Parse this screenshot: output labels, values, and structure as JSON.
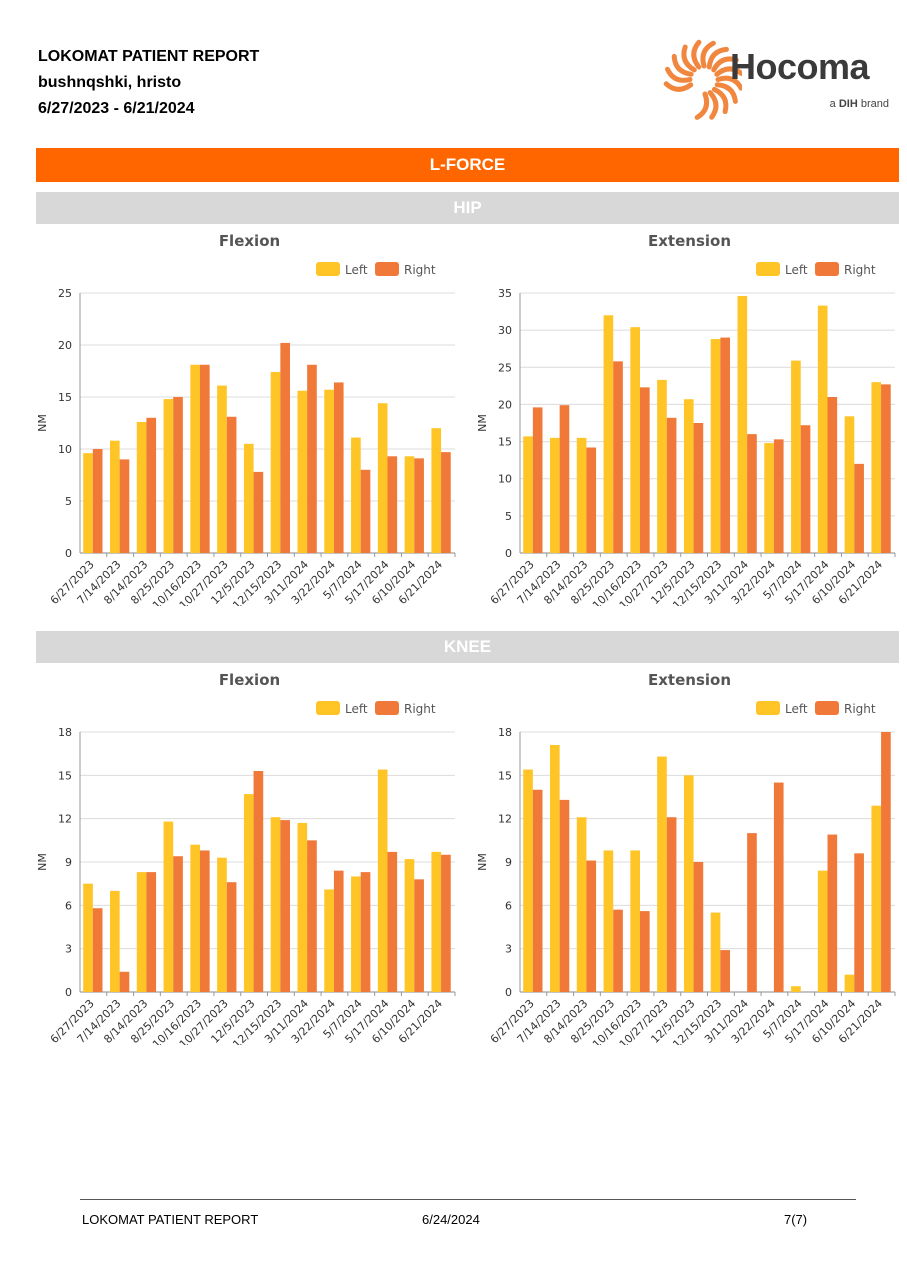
{
  "header": {
    "title": "LOKOMAT PATIENT REPORT",
    "patient": "bushnqshki, hristo",
    "date_range": "6/27/2023 - 6/21/2024"
  },
  "logo": {
    "word": "Hocoma",
    "brand_prefix": "a ",
    "brand_bold": "DIH",
    "brand_suffix": " brand",
    "color": "#f07a2a"
  },
  "section_title": "L-FORCE",
  "colors": {
    "left": "#ffc425",
    "right": "#f07838",
    "band": "#ff6600",
    "band_gray": "#d8d8d8"
  },
  "groups": {
    "hip": "HIP",
    "knee": "KNEE"
  },
  "chart_data": [
    {
      "id": "hip-flexion",
      "type": "bar",
      "title": "Flexion",
      "ylabel": "NM",
      "ylim": [
        0,
        25
      ],
      "yticks": [
        0,
        5,
        10,
        15,
        20,
        25
      ],
      "legend": "top-right",
      "categories": [
        "6/27/2023",
        "7/14/2023",
        "8/14/2023",
        "8/25/2023",
        "10/16/2023",
        "10/27/2023",
        "12/5/2023",
        "12/15/2023",
        "3/11/2024",
        "3/22/2024",
        "5/7/2024",
        "5/17/2024",
        "6/10/2024",
        "6/21/2024"
      ],
      "series": [
        {
          "name": "Left",
          "values": [
            9.6,
            10.8,
            12.6,
            14.8,
            18.1,
            16.1,
            10.5,
            17.4,
            15.6,
            15.7,
            11.1,
            14.4,
            9.3,
            12.0
          ]
        },
        {
          "name": "Right",
          "values": [
            10.0,
            9.0,
            13.0,
            15.0,
            18.1,
            13.1,
            7.8,
            20.2,
            18.1,
            16.4,
            8.0,
            9.3,
            9.1,
            9.7
          ]
        }
      ]
    },
    {
      "id": "hip-extension",
      "type": "bar",
      "title": "Extension",
      "ylabel": "NM",
      "ylim": [
        0,
        35
      ],
      "yticks": [
        0,
        5,
        10,
        15,
        20,
        25,
        30,
        35
      ],
      "legend": "top-right",
      "categories": [
        "6/27/2023",
        "7/14/2023",
        "8/14/2023",
        "8/25/2023",
        "10/16/2023",
        "10/27/2023",
        "12/5/2023",
        "12/15/2023",
        "3/11/2024",
        "3/22/2024",
        "5/7/2024",
        "5/17/2024",
        "6/10/2024",
        "6/21/2024"
      ],
      "series": [
        {
          "name": "Left",
          "values": [
            15.7,
            15.5,
            15.5,
            32.0,
            30.4,
            23.3,
            20.7,
            28.8,
            34.6,
            14.8,
            25.9,
            33.3,
            18.4,
            23.0
          ]
        },
        {
          "name": "Right",
          "values": [
            19.6,
            19.9,
            14.2,
            25.8,
            22.3,
            18.2,
            17.5,
            29.0,
            16.0,
            15.3,
            17.2,
            21.0,
            12.0,
            22.7
          ]
        }
      ]
    },
    {
      "id": "knee-flexion",
      "type": "bar",
      "title": "Flexion",
      "ylabel": "NM",
      "ylim": [
        0,
        18
      ],
      "yticks": [
        0,
        3,
        6,
        9,
        12,
        15,
        18
      ],
      "legend": "top-right",
      "categories": [
        "6/27/2023",
        "7/14/2023",
        "8/14/2023",
        "8/25/2023",
        "10/16/2023",
        "10/27/2023",
        "12/5/2023",
        "12/15/2023",
        "3/11/2024",
        "3/22/2024",
        "5/7/2024",
        "5/17/2024",
        "6/10/2024",
        "6/21/2024"
      ],
      "series": [
        {
          "name": "Left",
          "values": [
            7.5,
            7.0,
            8.3,
            11.8,
            10.2,
            9.3,
            13.7,
            12.1,
            11.7,
            7.1,
            8.0,
            15.4,
            9.2,
            9.7
          ]
        },
        {
          "name": "Right",
          "values": [
            5.8,
            1.4,
            8.3,
            9.4,
            9.8,
            7.6,
            15.3,
            11.9,
            10.5,
            8.4,
            8.3,
            9.7,
            7.8,
            9.5
          ]
        }
      ]
    },
    {
      "id": "knee-extension",
      "type": "bar",
      "title": "Extension",
      "ylabel": "NM",
      "ylim": [
        0,
        18
      ],
      "yticks": [
        0,
        3,
        6,
        9,
        12,
        15,
        18
      ],
      "legend": "top-right",
      "categories": [
        "6/27/2023",
        "7/14/2023",
        "8/14/2023",
        "8/25/2023",
        "10/16/2023",
        "10/27/2023",
        "12/5/2023",
        "12/15/2023",
        "3/11/2024",
        "3/22/2024",
        "5/7/2024",
        "5/17/2024",
        "6/10/2024",
        "6/21/2024"
      ],
      "series": [
        {
          "name": "Left",
          "values": [
            15.4,
            17.1,
            12.1,
            9.8,
            9.8,
            16.3,
            15.0,
            5.5,
            0,
            0,
            0.4,
            8.4,
            1.2,
            12.9
          ]
        },
        {
          "name": "Right",
          "values": [
            14.0,
            13.3,
            9.1,
            5.7,
            5.6,
            12.1,
            9.0,
            2.9,
            11.0,
            14.5,
            0,
            10.9,
            9.6,
            18.0
          ]
        }
      ]
    }
  ],
  "footer": {
    "title": "LOKOMAT PATIENT REPORT",
    "date": "6/24/2024",
    "page": "7(7)"
  }
}
